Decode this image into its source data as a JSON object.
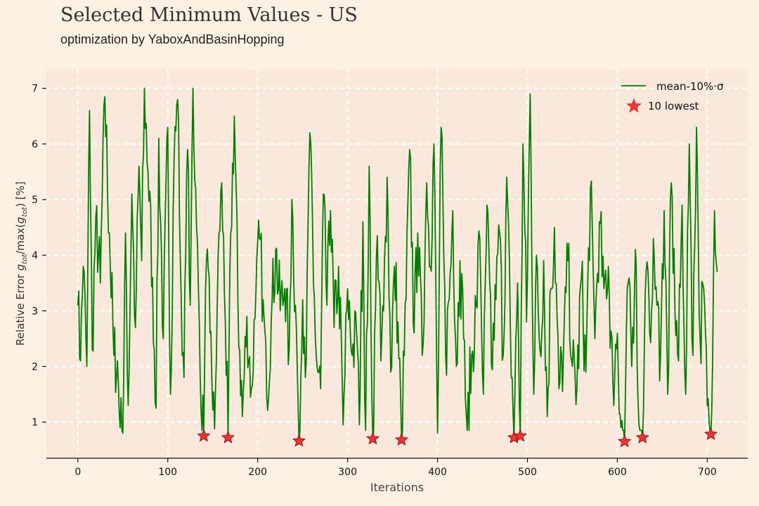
{
  "title": "Selected Minimum Values - US",
  "subtitle": "optimization by YaboxAndBasinHopping",
  "colors": {
    "background": "#fdf1e6",
    "plot_area": "#f9e8db",
    "grid": "#ffffff",
    "line": "#008000",
    "marker": "#ee3333"
  },
  "chart_data": {
    "type": "line",
    "xlabel": "Iterations",
    "ylabel": "Relative Error g_tot/max(g_tot) [%]",
    "ylabel_parts": {
      "prefix": "Relative Error ",
      "g1": "g",
      "sub1": "tot",
      "mid": "/max(",
      "g2": "g",
      "sub2": "tot",
      "suffix": ") [%]"
    },
    "xlim": [
      -35,
      745
    ],
    "ylim": [
      0.35,
      7.35
    ],
    "xticks": [
      0,
      100,
      200,
      300,
      400,
      500,
      600,
      700
    ],
    "yticks": [
      1,
      2,
      3,
      4,
      5,
      6,
      7
    ],
    "grid": true,
    "legend_position": "top-right",
    "series": [
      {
        "name": "mean-10%·σ",
        "kind": "line",
        "n_points": 712,
        "anchors": [
          [
            0,
            3.1
          ],
          [
            3,
            2.1
          ],
          [
            6,
            3.8
          ],
          [
            10,
            2.0
          ],
          [
            13,
            6.6
          ],
          [
            16,
            2.3
          ],
          [
            20,
            4.7
          ],
          [
            25,
            3.5
          ],
          [
            30,
            6.85
          ],
          [
            35,
            4.4
          ],
          [
            40,
            2.2
          ],
          [
            44,
            2.1
          ],
          [
            47,
            0.9
          ],
          [
            50,
            0.8
          ],
          [
            53,
            4.4
          ],
          [
            56,
            1.3
          ],
          [
            60,
            5.1
          ],
          [
            64,
            2.7
          ],
          [
            68,
            5.6
          ],
          [
            71,
            3.9
          ],
          [
            74,
            7.0
          ],
          [
            78,
            5.5
          ],
          [
            83,
            3.6
          ],
          [
            87,
            1.25
          ],
          [
            90,
            6.1
          ],
          [
            95,
            2.5
          ],
          [
            100,
            6.3
          ],
          [
            103,
            1.5
          ],
          [
            107,
            5.7
          ],
          [
            111,
            6.8
          ],
          [
            115,
            3.2
          ],
          [
            118,
            1.8
          ],
          [
            122,
            5.9
          ],
          [
            125,
            3.1
          ],
          [
            128,
            7.0
          ],
          [
            132,
            4.5
          ],
          [
            137,
            1.2
          ],
          [
            140,
            0.75
          ],
          [
            143,
            3.9
          ],
          [
            147,
            2.6
          ],
          [
            152,
            0.88
          ],
          [
            156,
            4.0
          ],
          [
            160,
            5.3
          ],
          [
            164,
            2.8
          ],
          [
            167,
            0.72
          ],
          [
            170,
            4.4
          ],
          [
            174,
            6.5
          ],
          [
            178,
            3.2
          ],
          [
            183,
            1.1
          ],
          [
            188,
            2.9
          ],
          [
            193,
            1.6
          ],
          [
            198,
            3.3
          ],
          [
            202,
            4.3
          ],
          [
            206,
            3.2
          ],
          [
            210,
            1.45
          ],
          [
            215,
            2.8
          ],
          [
            220,
            4.1
          ],
          [
            225,
            3.0
          ],
          [
            230,
            3.4
          ],
          [
            235,
            2.3
          ],
          [
            238,
            5.0
          ],
          [
            242,
            3.1
          ],
          [
            246,
            0.66
          ],
          [
            250,
            3.2
          ],
          [
            254,
            2.1
          ],
          [
            258,
            6.2
          ],
          [
            262,
            3.5
          ],
          [
            266,
            2.0
          ],
          [
            270,
            1.6
          ],
          [
            273,
            5.1
          ],
          [
            277,
            3.1
          ],
          [
            281,
            4.8
          ],
          [
            285,
            2.7
          ],
          [
            290,
            3.8
          ],
          [
            295,
            0.95
          ],
          [
            300,
            3.4
          ],
          [
            305,
            2.2
          ],
          [
            310,
            2.6
          ],
          [
            313,
            0.95
          ],
          [
            317,
            4.6
          ],
          [
            320,
            0.85
          ],
          [
            324,
            5.6
          ],
          [
            328,
            0.7
          ],
          [
            333,
            4.35
          ],
          [
            337,
            2.1
          ],
          [
            340,
            3.0
          ],
          [
            344,
            5.4
          ],
          [
            348,
            1.9
          ],
          [
            352,
            3.8
          ],
          [
            356,
            2.8
          ],
          [
            360,
            0.68
          ],
          [
            365,
            3.2
          ],
          [
            369,
            5.9
          ],
          [
            374,
            2.6
          ],
          [
            378,
            4.4
          ],
          [
            383,
            2.2
          ],
          [
            388,
            5.3
          ],
          [
            392,
            3.8
          ],
          [
            396,
            6.0
          ],
          [
            400,
            0.8
          ],
          [
            404,
            6.3
          ],
          [
            409,
            2.2
          ],
          [
            413,
            3.2
          ],
          [
            417,
            4.8
          ],
          [
            421,
            2.0
          ],
          [
            425,
            3.9
          ],
          [
            429,
            2.5
          ],
          [
            433,
            0.85
          ],
          [
            438,
            2.2
          ],
          [
            443,
            3.1
          ],
          [
            447,
            4.3
          ],
          [
            451,
            1.5
          ],
          [
            455,
            4.9
          ],
          [
            460,
            2.0
          ],
          [
            465,
            3.2
          ],
          [
            469,
            4.4
          ],
          [
            473,
            2.2
          ],
          [
            477,
            5.4
          ],
          [
            481,
            2.7
          ],
          [
            485,
            0.72
          ],
          [
            489,
            3.5
          ],
          [
            492,
            0.75
          ],
          [
            495,
            6.0
          ],
          [
            499,
            2.8
          ],
          [
            503,
            6.9
          ],
          [
            507,
            1.5
          ],
          [
            510,
            4.0
          ],
          [
            514,
            2.3
          ],
          [
            518,
            3.9
          ],
          [
            522,
            1.1
          ],
          [
            526,
            3.4
          ],
          [
            530,
            4.5
          ],
          [
            535,
            1.6
          ],
          [
            540,
            2.2
          ],
          [
            545,
            3.9
          ],
          [
            550,
            2.0
          ],
          [
            555,
            1.6
          ],
          [
            560,
            3.6
          ],
          [
            565,
            1.9
          ],
          [
            570,
            5.2
          ],
          [
            575,
            2.5
          ],
          [
            580,
            4.6
          ],
          [
            585,
            3.4
          ],
          [
            590,
            3.8
          ],
          [
            595,
            1.7
          ],
          [
            600,
            2.6
          ],
          [
            604,
            0.9
          ],
          [
            608,
            0.65
          ],
          [
            612,
            3.5
          ],
          [
            616,
            2.0
          ],
          [
            620,
            4.1
          ],
          [
            624,
            0.95
          ],
          [
            628,
            0.72
          ],
          [
            632,
            3.7
          ],
          [
            636,
            2.6
          ],
          [
            640,
            4.3
          ],
          [
            644,
            3.1
          ],
          [
            648,
            2.2
          ],
          [
            652,
            4.8
          ],
          [
            656,
            1.5
          ],
          [
            660,
            5.3
          ],
          [
            664,
            3.0
          ],
          [
            668,
            2.1
          ],
          [
            672,
            4.9
          ],
          [
            676,
            1.5
          ],
          [
            680,
            6.0
          ],
          [
            684,
            2.2
          ],
          [
            688,
            6.3
          ],
          [
            692,
            2.5
          ],
          [
            696,
            3.4
          ],
          [
            700,
            1.3
          ],
          [
            704,
            0.78
          ],
          [
            708,
            4.8
          ],
          [
            711,
            3.7
          ]
        ]
      },
      {
        "name": "10 lowest",
        "kind": "markers",
        "points": [
          [
            140,
            0.75
          ],
          [
            167,
            0.72
          ],
          [
            246,
            0.66
          ],
          [
            328,
            0.7
          ],
          [
            360,
            0.68
          ],
          [
            485,
            0.72
          ],
          [
            492,
            0.75
          ],
          [
            608,
            0.65
          ],
          [
            628,
            0.72
          ],
          [
            704,
            0.78
          ]
        ]
      }
    ]
  }
}
